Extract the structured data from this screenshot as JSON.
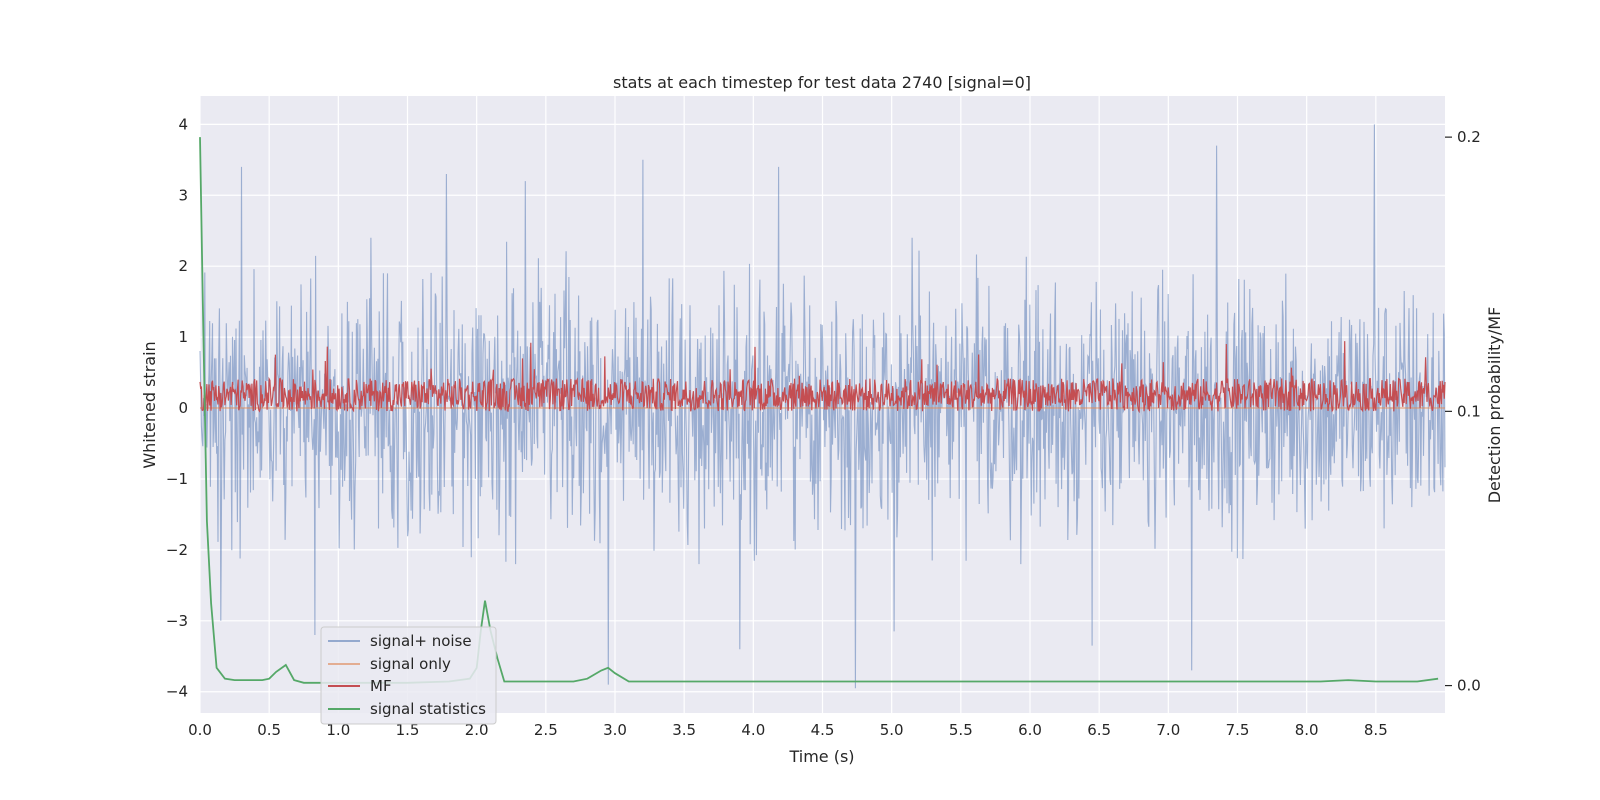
{
  "chart_data": {
    "type": "line",
    "title": "stats at each timestep for test data 2740 [signal=0]",
    "xlabel": "Time (s)",
    "ylabel": "Whitened strain",
    "ylabel_right": "Detection probability/MF",
    "xlim": [
      0.0,
      9.0
    ],
    "ylim": [
      -4.3,
      4.4
    ],
    "ylim_right": [
      -0.01,
      0.215
    ],
    "xticks": [
      0.0,
      0.5,
      1.0,
      1.5,
      2.0,
      2.5,
      3.0,
      3.5,
      4.0,
      4.5,
      5.0,
      5.5,
      6.0,
      6.5,
      7.0,
      7.5,
      8.0,
      8.5
    ],
    "xtick_labels": [
      "0.0",
      "0.5",
      "1.0",
      "1.5",
      "2.0",
      "2.5",
      "3.0",
      "3.5",
      "4.0",
      "4.5",
      "5.0",
      "5.5",
      "6.0",
      "6.5",
      "7.0",
      "7.5",
      "8.0",
      "8.5"
    ],
    "yticks": [
      4,
      3,
      2,
      1,
      0,
      -1,
      -2,
      -3,
      -4
    ],
    "ytick_labels": [
      "4",
      "3",
      "2",
      "1",
      "0",
      "−1",
      "−2",
      "−3",
      "−4"
    ],
    "yticks_right": [
      0.2,
      0.1,
      0.0
    ],
    "ytick_labels_right": [
      "0.2",
      "0.1",
      "0.0"
    ],
    "grid": true,
    "legend_position": "lower-left",
    "legend": [
      "signal+ noise",
      "signal only",
      "MF",
      "signal statistics"
    ],
    "series": [
      {
        "name": "signal+ noise",
        "axis": "left",
        "color": "#4c72b0",
        "kind": "noise",
        "n_samples": 1800,
        "typical_range": [
          -1.6,
          1.8
        ],
        "peaks": [
          {
            "x": 0.3,
            "y": 3.4
          },
          {
            "x": 1.78,
            "y": 3.3
          },
          {
            "x": 2.35,
            "y": 3.2
          },
          {
            "x": 3.2,
            "y": 3.5
          },
          {
            "x": 4.18,
            "y": 3.4
          },
          {
            "x": 7.35,
            "y": 3.7
          },
          {
            "x": 8.49,
            "y": 4.0
          },
          {
            "x": 0.15,
            "y": -3.0
          },
          {
            "x": 0.83,
            "y": -3.2
          },
          {
            "x": 2.95,
            "y": -3.9
          },
          {
            "x": 3.9,
            "y": -3.4
          },
          {
            "x": 4.74,
            "y": -3.95
          },
          {
            "x": 6.45,
            "y": -3.35
          },
          {
            "x": 7.17,
            "y": -3.7
          },
          {
            "x": 5.02,
            "y": -3.15
          }
        ]
      },
      {
        "name": "signal only",
        "axis": "left",
        "color": "#dd8452",
        "kind": "flat",
        "value": 0.0
      },
      {
        "name": "MF",
        "axis": "right",
        "color": "#c44e52",
        "kind": "noise",
        "n_samples": 1800,
        "typical_range": [
          0.1,
          0.112
        ],
        "peak_max": 0.126
      },
      {
        "name": "signal statistics",
        "axis": "right",
        "color": "#55a868",
        "kind": "line",
        "x": [
          0.0,
          0.02,
          0.05,
          0.08,
          0.12,
          0.18,
          0.25,
          0.35,
          0.45,
          0.5,
          0.55,
          0.62,
          0.68,
          0.75,
          0.9,
          1.2,
          1.5,
          1.8,
          1.95,
          2.0,
          2.03,
          2.06,
          2.1,
          2.15,
          2.2,
          2.5,
          2.7,
          2.8,
          2.9,
          2.95,
          3.0,
          3.1,
          3.5,
          4.0,
          5.0,
          6.0,
          7.0,
          8.0,
          8.1,
          8.3,
          8.5,
          8.8,
          8.95
        ],
        "y": [
          0.2,
          0.14,
          0.06,
          0.03,
          0.0065,
          0.0025,
          0.002,
          0.002,
          0.002,
          0.0025,
          0.005,
          0.0075,
          0.002,
          0.001,
          0.001,
          0.001,
          0.001,
          0.0015,
          0.0025,
          0.0065,
          0.02,
          0.031,
          0.02,
          0.01,
          0.0015,
          0.0015,
          0.0015,
          0.0025,
          0.0055,
          0.0065,
          0.0045,
          0.0015,
          0.0015,
          0.0015,
          0.0015,
          0.0015,
          0.0015,
          0.0015,
          0.0015,
          0.002,
          0.0015,
          0.0015,
          0.0025
        ]
      }
    ]
  }
}
